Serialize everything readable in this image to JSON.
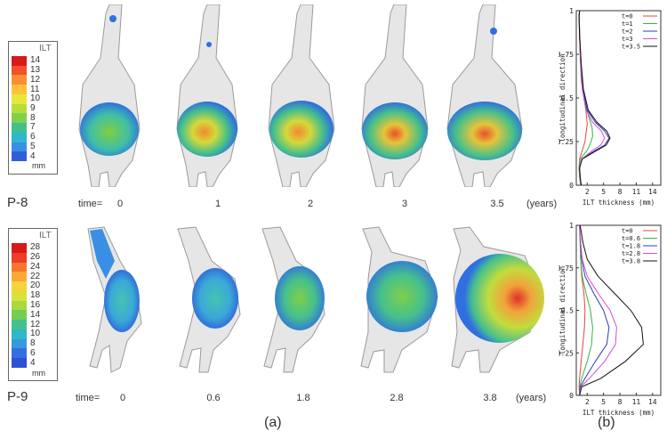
{
  "rows": [
    {
      "patient": "P-8",
      "time_label": "time=",
      "times": [
        "0",
        "1",
        "2",
        "3",
        "3.5"
      ],
      "unit_label": "(years)",
      "colorbar": {
        "title": "ILT",
        "unit": "mm",
        "ticks": [
          "14",
          "13",
          "12",
          "11",
          "10",
          "9",
          "8",
          "7",
          "6",
          "5",
          "4"
        ],
        "colors": [
          "#d7191c",
          "#f0502a",
          "#f98e35",
          "#fdc13c",
          "#e9e63a",
          "#b7dd3b",
          "#7fd14a",
          "#41c08f",
          "#2db7cf",
          "#3a8fe4",
          "#2f5fd9"
        ]
      }
    },
    {
      "patient": "P-9",
      "time_label": "time=",
      "times": [
        "0",
        "0.6",
        "1.8",
        "2.8",
        "3.8"
      ],
      "unit_label": "(years)",
      "colorbar": {
        "title": "ILT",
        "unit": "mm",
        "ticks": [
          "28",
          "26",
          "24",
          "22",
          "20",
          "18",
          "16",
          "14",
          "12",
          "10",
          "8",
          "6",
          "4"
        ],
        "colors": [
          "#d7191c",
          "#ec3f26",
          "#f7762f",
          "#fca836",
          "#f6d23b",
          "#d8e23a",
          "#a9d83f",
          "#74cd54",
          "#44c190",
          "#2fb8c6",
          "#3698e0",
          "#3270dd",
          "#2f4fd4"
        ]
      }
    }
  ],
  "panel_labels": {
    "a": "(a)",
    "b": "(b)"
  },
  "chart_data": [
    {
      "type": "line",
      "title": "",
      "xlabel": "ILT thickness (mm)",
      "ylabel": "longitudinal direction",
      "xlim": [
        0,
        15.5
      ],
      "ylim": [
        0,
        1
      ],
      "xticks": [
        "2",
        "5",
        "8",
        "11",
        "14"
      ],
      "yticks": [
        "0",
        "0.25",
        "0.5",
        "0.75",
        "1"
      ],
      "legend_position": "top-right",
      "series": [
        {
          "name": "t=0",
          "color": "#e8453c",
          "x": [
            0.8,
            0.6,
            0.5,
            0.6,
            1.3,
            1.6,
            1.8,
            2.0,
            1.8,
            1.4,
            1.0,
            0.8,
            0.6,
            0.5,
            0.6
          ],
          "y": [
            0,
            0.05,
            0.1,
            0.15,
            0.22,
            0.25,
            0.3,
            0.35,
            0.42,
            0.5,
            0.6,
            0.75,
            0.9,
            0.97,
            1.0
          ]
        },
        {
          "name": "t=1",
          "color": "#34b449",
          "x": [
            0.8,
            0.6,
            0.5,
            0.7,
            2.0,
            2.6,
            3.0,
            2.9,
            2.2,
            1.4,
            0.9,
            0.7,
            0.6,
            0.5,
            0.6
          ],
          "y": [
            0,
            0.05,
            0.1,
            0.15,
            0.2,
            0.24,
            0.28,
            0.33,
            0.4,
            0.5,
            0.6,
            0.75,
            0.9,
            0.97,
            1.0
          ]
        },
        {
          "name": "t=2",
          "color": "#2b3fb5",
          "x": [
            0.9,
            0.7,
            0.6,
            1.0,
            3.5,
            5.2,
            6.0,
            5.2,
            3.5,
            2.0,
            1.2,
            0.8,
            0.6,
            0.5,
            0.6
          ],
          "y": [
            0,
            0.05,
            0.1,
            0.15,
            0.2,
            0.23,
            0.27,
            0.31,
            0.36,
            0.43,
            0.55,
            0.7,
            0.85,
            0.97,
            1.0
          ]
        },
        {
          "name": "t=3",
          "color": "#d64bd8",
          "x": [
            0.9,
            0.7,
            0.6,
            1.0,
            3.0,
            4.5,
            5.2,
            4.6,
            3.0,
            1.8,
            1.1,
            0.8,
            0.6,
            0.5,
            0.6
          ],
          "y": [
            0,
            0.05,
            0.1,
            0.15,
            0.2,
            0.23,
            0.27,
            0.31,
            0.36,
            0.43,
            0.55,
            0.7,
            0.85,
            0.97,
            1.0
          ]
        },
        {
          "name": "t=3.5",
          "color": "#111111",
          "x": [
            0.9,
            0.7,
            0.6,
            1.1,
            3.8,
            5.5,
            6.2,
            5.6,
            3.8,
            2.2,
            1.3,
            0.9,
            0.6,
            0.5,
            0.6
          ],
          "y": [
            0,
            0.05,
            0.1,
            0.15,
            0.2,
            0.23,
            0.27,
            0.31,
            0.36,
            0.43,
            0.55,
            0.7,
            0.85,
            0.97,
            1.0
          ]
        }
      ]
    },
    {
      "type": "line",
      "title": "",
      "xlabel": "ILT thickness (mm)",
      "ylabel": "longitudinal direction",
      "xlim": [
        0,
        15.5
      ],
      "ylim": [
        0,
        1
      ],
      "xticks": [
        "2",
        "5",
        "8",
        "11",
        "14"
      ],
      "yticks": [
        "0",
        "0.25",
        "0.5",
        "0.75",
        "1"
      ],
      "legend_position": "top-right",
      "series": [
        {
          "name": "t=0",
          "color": "#e8453c",
          "x": [
            0.6,
            0.5,
            0.6,
            0.9,
            1.2,
            1.5,
            1.6,
            1.4,
            1.0,
            0.8,
            0.7,
            0.6
          ],
          "y": [
            0,
            0.05,
            0.1,
            0.2,
            0.3,
            0.4,
            0.5,
            0.6,
            0.7,
            0.8,
            0.9,
            1.0
          ]
        },
        {
          "name": "t=0.6",
          "color": "#34b449",
          "x": [
            0.6,
            0.6,
            1.0,
            2.0,
            2.8,
            3.0,
            2.6,
            1.8,
            1.1,
            0.8,
            0.7,
            0.6
          ],
          "y": [
            0,
            0.05,
            0.1,
            0.2,
            0.3,
            0.4,
            0.5,
            0.6,
            0.7,
            0.8,
            0.9,
            1.0
          ]
        },
        {
          "name": "t=1.8",
          "color": "#2b3fb5",
          "x": [
            0.6,
            0.7,
            1.6,
            3.5,
            5.6,
            6.0,
            5.0,
            3.2,
            1.6,
            1.0,
            0.8,
            0.6
          ],
          "y": [
            0,
            0.05,
            0.1,
            0.2,
            0.3,
            0.4,
            0.5,
            0.6,
            0.7,
            0.8,
            0.9,
            1.0
          ]
        },
        {
          "name": "t=2.8",
          "color": "#d64bd8",
          "x": [
            0.6,
            0.8,
            2.4,
            5.2,
            7.2,
            7.4,
            6.2,
            4.0,
            2.0,
            1.1,
            0.8,
            0.6
          ],
          "y": [
            0,
            0.05,
            0.1,
            0.2,
            0.3,
            0.4,
            0.5,
            0.6,
            0.7,
            0.8,
            0.9,
            1.0
          ]
        },
        {
          "name": "t=3.8",
          "color": "#111111",
          "x": [
            0.6,
            1.0,
            4.5,
            9.0,
            12.3,
            12.0,
            10.0,
            7.0,
            4.0,
            2.0,
            1.2,
            0.7
          ],
          "y": [
            0,
            0.05,
            0.1,
            0.2,
            0.3,
            0.4,
            0.5,
            0.6,
            0.7,
            0.8,
            0.9,
            1.0
          ]
        }
      ]
    }
  ]
}
